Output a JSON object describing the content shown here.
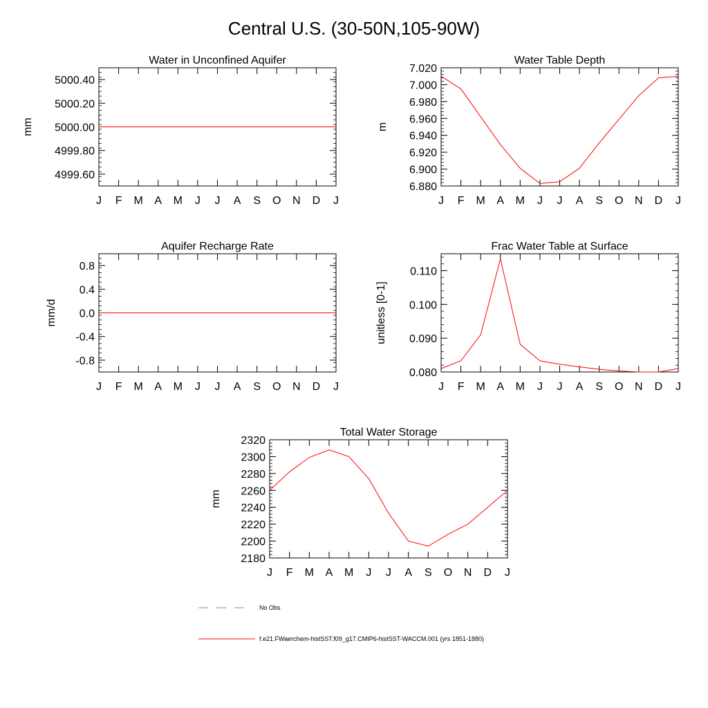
{
  "figure": {
    "title": "Central U.S. (30-50N,105-90W)"
  },
  "legend": {
    "obs_label": "No Obs",
    "model_label": "f.e21.FWaerchem-histSST.f09_g17.CMIP6-histSST-WACCM.001 (yrs 1851-1880)",
    "obs_color": "#888888",
    "model_color": "#ff0000"
  },
  "chart_data": [
    {
      "type": "line",
      "title": "Water in Unconfined Aquifer",
      "xlabel": "",
      "ylabel": "mm",
      "categories": [
        "J",
        "F",
        "M",
        "A",
        "M",
        "J",
        "J",
        "A",
        "S",
        "O",
        "N",
        "D",
        "J"
      ],
      "ylim": [
        4999.5,
        5000.5
      ],
      "yticks": [
        4999.6,
        4999.8,
        5000.0,
        5000.2,
        5000.4
      ],
      "ytick_labels": [
        "4999.60",
        "4999.80",
        "5000.00",
        "5000.20",
        "5000.40"
      ],
      "series": [
        {
          "values": [
            5000,
            5000,
            5000,
            5000,
            5000,
            5000,
            5000,
            5000,
            5000,
            5000,
            5000,
            5000,
            5000
          ],
          "color": "#ff0000"
        }
      ]
    },
    {
      "type": "line",
      "title": "Water Table Depth",
      "xlabel": "",
      "ylabel": "m",
      "categories": [
        "J",
        "F",
        "M",
        "A",
        "M",
        "J",
        "J",
        "A",
        "S",
        "O",
        "N",
        "D",
        "J"
      ],
      "ylim": [
        6.88,
        7.02
      ],
      "yticks": [
        6.88,
        6.9,
        6.92,
        6.94,
        6.96,
        6.98,
        7.0,
        7.02
      ],
      "ytick_labels": [
        "6.880",
        "6.900",
        "6.920",
        "6.940",
        "6.960",
        "6.980",
        "7.000",
        "7.020"
      ],
      "series": [
        {
          "values": [
            7.01,
            6.995,
            6.962,
            6.929,
            6.901,
            6.883,
            6.885,
            6.901,
            6.931,
            6.959,
            6.987,
            7.008,
            7.01
          ],
          "color": "#ff0000"
        }
      ]
    },
    {
      "type": "line",
      "title": "Aquifer Recharge Rate",
      "xlabel": "",
      "ylabel": "mm/d",
      "categories": [
        "J",
        "F",
        "M",
        "A",
        "M",
        "J",
        "J",
        "A",
        "S",
        "O",
        "N",
        "D",
        "J"
      ],
      "ylim": [
        -1.0,
        1.0
      ],
      "yticks": [
        -0.8,
        -0.4,
        0.0,
        0.4,
        0.8
      ],
      "ytick_labels": [
        "-0.8",
        "-0.4",
        "0.0",
        "0.4",
        "0.8"
      ],
      "series": [
        {
          "values": [
            0,
            0,
            0,
            0,
            0,
            0,
            0,
            0,
            0,
            0,
            0,
            0,
            0
          ],
          "color": "#ff0000"
        }
      ]
    },
    {
      "type": "line",
      "title": "Frac Water Table at Surface",
      "xlabel": "",
      "ylabel": "unitless [0-1]",
      "categories": [
        "J",
        "F",
        "M",
        "A",
        "M",
        "J",
        "J",
        "A",
        "S",
        "O",
        "N",
        "D",
        "J"
      ],
      "ylim": [
        0.08,
        0.115
      ],
      "yticks": [
        0.08,
        0.09,
        0.1,
        0.11
      ],
      "ytick_labels": [
        "0.080",
        "0.090",
        "0.100",
        "0.110"
      ],
      "series": [
        {
          "values": [
            0.081,
            0.0833,
            0.091,
            0.1135,
            0.0882,
            0.0833,
            0.0823,
            0.0815,
            0.0808,
            0.0803,
            0.08,
            0.08,
            0.081
          ],
          "color": "#ff0000"
        }
      ]
    },
    {
      "type": "line",
      "title": "Total Water Storage",
      "xlabel": "",
      "ylabel": "mm",
      "categories": [
        "J",
        "F",
        "M",
        "A",
        "M",
        "J",
        "J",
        "A",
        "S",
        "O",
        "N",
        "D",
        "J"
      ],
      "ylim": [
        2180,
        2320
      ],
      "yticks": [
        2180,
        2200,
        2220,
        2240,
        2260,
        2280,
        2300,
        2320
      ],
      "ytick_labels": [
        "2180",
        "2200",
        "2220",
        "2240",
        "2260",
        "2280",
        "2300",
        "2320"
      ],
      "series": [
        {
          "values": [
            2260,
            2282,
            2299,
            2308,
            2300,
            2274,
            2233,
            2200,
            2194,
            2208,
            2220,
            2240,
            2260
          ],
          "color": "#ff0000"
        }
      ]
    }
  ]
}
